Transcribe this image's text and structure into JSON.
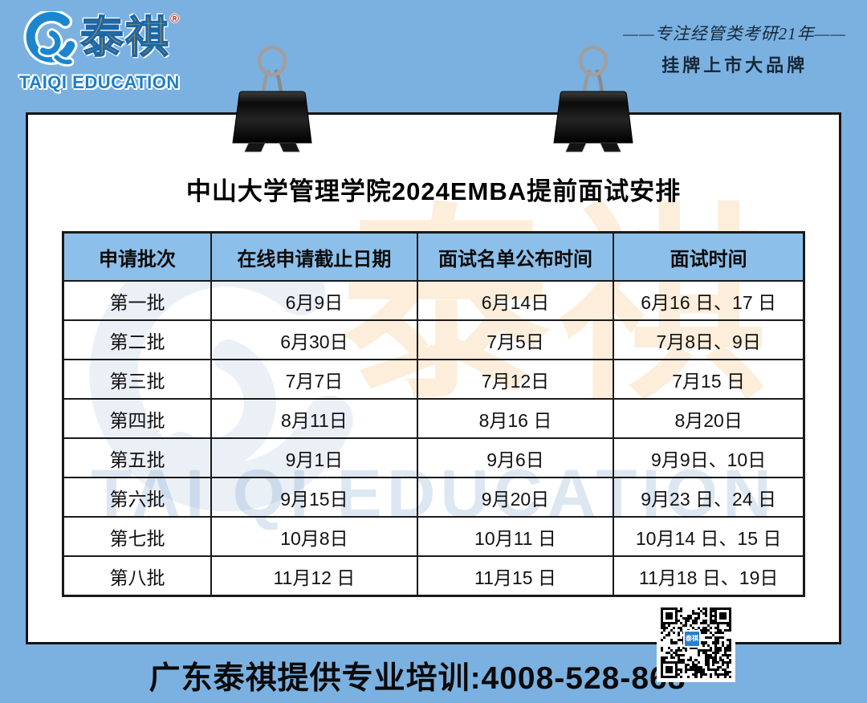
{
  "brand": {
    "name_cn": "泰祺",
    "registered_mark": "®",
    "name_en": "TAIQI EDUCATION"
  },
  "header": {
    "slogan_line1": "——专注经管类考研21年——",
    "slogan_line2": "挂牌上市大品牌"
  },
  "poster": {
    "title": "中山大学管理学院2024EMBA提前面试安排"
  },
  "table": {
    "headers": [
      "申请批次",
      "在线申请截止日期",
      "面试名单公布时间",
      "面试时间"
    ],
    "rows": [
      [
        "第一批",
        "6月9日",
        "6月14日",
        "6月16 日、17 日"
      ],
      [
        "第二批",
        "6月30日",
        "7月5日",
        "7月8日、9日"
      ],
      [
        "第三批",
        "7月7日",
        "7月12日",
        "7月15 日"
      ],
      [
        "第四批",
        "8月11日",
        "8月16 日",
        "8月20日"
      ],
      [
        "第五批",
        "9月1日",
        "9月6日",
        "9月9日、10日"
      ],
      [
        "第六批",
        "9月15日",
        "9月20日",
        "9月23 日、24 日"
      ],
      [
        "第七批",
        "10月8日",
        "10月11 日",
        "10月14 日、15 日"
      ],
      [
        "第八批",
        "11月12 日",
        "11月15 日",
        "11月18 日、19日"
      ]
    ]
  },
  "watermark": {
    "name_cn": "泰祺",
    "name_en": "TAI QI EDUCATION"
  },
  "footer": {
    "text": "广东泰祺提供专业培训:4008-528-868",
    "qr_center_label": "泰祺"
  },
  "colors": {
    "background": "#7BB1E0",
    "table_header": "#8CC0EA",
    "brand_orange": "#F6A41E",
    "brand_blue": "#1B7ECA",
    "text_dark": "#111111"
  }
}
